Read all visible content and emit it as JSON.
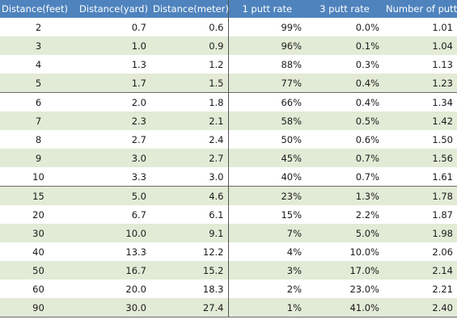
{
  "table": {
    "columns": [
      "Distance(feet)",
      "Distance(yard)",
      "Distance(meter)",
      "1 putt rate",
      "3 putt rate",
      "Number of putts"
    ],
    "rows": [
      [
        "2",
        "0.7",
        "0.6",
        "99%",
        "0.0%",
        "1.01"
      ],
      [
        "3",
        "1.0",
        "0.9",
        "96%",
        "0.1%",
        "1.04"
      ],
      [
        "4",
        "1.3",
        "1.2",
        "88%",
        "0.3%",
        "1.13"
      ],
      [
        "5",
        "1.7",
        "1.5",
        "77%",
        "0.4%",
        "1.23"
      ],
      [
        "6",
        "2.0",
        "1.8",
        "66%",
        "0.4%",
        "1.34"
      ],
      [
        "7",
        "2.3",
        "2.1",
        "58%",
        "0.5%",
        "1.42"
      ],
      [
        "8",
        "2.7",
        "2.4",
        "50%",
        "0.6%",
        "1.50"
      ],
      [
        "9",
        "3.0",
        "2.7",
        "45%",
        "0.7%",
        "1.56"
      ],
      [
        "10",
        "3.3",
        "3.0",
        "40%",
        "0.7%",
        "1.61"
      ],
      [
        "15",
        "5.0",
        "4.6",
        "23%",
        "1.3%",
        "1.78"
      ],
      [
        "20",
        "6.7",
        "6.1",
        "15%",
        "2.2%",
        "1.87"
      ],
      [
        "30",
        "10.0",
        "9.1",
        "7%",
        "5.0%",
        "1.98"
      ],
      [
        "40",
        "13.3",
        "12.2",
        "4%",
        "10.0%",
        "2.06"
      ],
      [
        "50",
        "16.7",
        "15.2",
        "3%",
        "17.0%",
        "2.14"
      ],
      [
        "60",
        "20.0",
        "18.3",
        "2%",
        "23.0%",
        "2.21"
      ],
      [
        "90",
        "30.0",
        "27.4",
        "1%",
        "41.0%",
        "2.40"
      ]
    ]
  },
  "colors": {
    "header_background": "#4e83bd",
    "header_text": "#ffffff",
    "shaded_row": "#e2ebd6",
    "plain_row": "#ffffff"
  }
}
